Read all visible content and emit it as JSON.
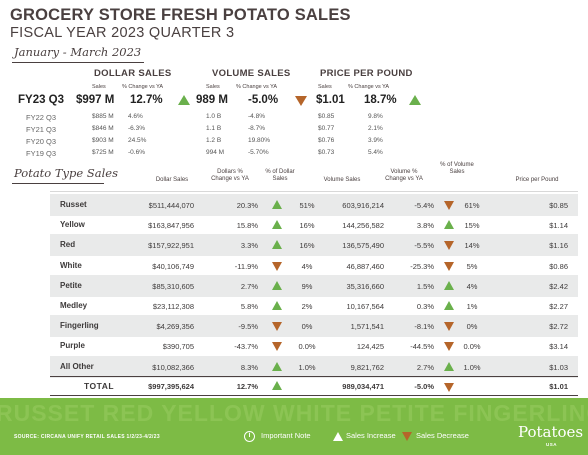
{
  "header": {
    "title": "GROCERY STORE  FRESH POTATO SALES",
    "subtitle": "FISCAL YEAR 2023 QUARTER 3",
    "date_range": "January - March 2023"
  },
  "summary": {
    "groups": {
      "dollar": "DOLLAR SALES",
      "volume": "VOLUME SALES",
      "price": "PRICE PER POUND"
    },
    "subheads": {
      "dollar_sales": "Sales",
      "dollar_change": "% Change vs YA",
      "volume_sales": "Sales",
      "volume_change": "% Change vs YA",
      "price_sales": "Sales",
      "price_change": "% Change vs YA"
    },
    "current": {
      "label": "FY23 Q3",
      "dollar_sales": "$997 M",
      "dollar_change": "12.7%",
      "dollar_trend": "increase",
      "volume_sales": "989 M",
      "volume_change": "-5.0%",
      "volume_trend": "decrease",
      "price": "$1.01",
      "price_change": "18.7%",
      "price_trend": "increase"
    },
    "history": [
      {
        "label": "FY22 Q3",
        "dollar_sales": "$885 M",
        "dollar_change": "4.6%",
        "volume_sales": "1.0 B",
        "volume_change": "-4.8%",
        "price": "$0.85",
        "price_change": "9.8%"
      },
      {
        "label": "FY21 Q3",
        "dollar_sales": "$846 M",
        "dollar_change": "-6.3%",
        "volume_sales": "1.1 B",
        "volume_change": "-8.7%",
        "price": "$0.77",
        "price_change": "2.1%"
      },
      {
        "label": "FY20 Q3",
        "dollar_sales": "$903 M",
        "dollar_change": "24.5%",
        "volume_sales": "1.2 B",
        "volume_change": "19.80%",
        "price": "$0.76",
        "price_change": "3.9%"
      },
      {
        "label": "FY19 Q3",
        "dollar_sales": "$725 M",
        "dollar_change": "-0.6%",
        "volume_sales": "994 M",
        "volume_change": "-5.70%",
        "price": "$0.73",
        "price_change": "5.4%"
      }
    ]
  },
  "types_table": {
    "section_title": "Potato Type Sales",
    "columns": {
      "dollar_sales": "Dollar Sales",
      "dollar_change": "Dollars % Change vs YA",
      "dollar_share": "% of Dollar Sales",
      "volume_sales": "Volume Sales",
      "volume_change": "Volume % Change vs YA",
      "volume_share": "% of Volume Sales",
      "price": "Price per Pound"
    },
    "rows": [
      {
        "name": "Russet",
        "dollar_sales": "$511,444,070",
        "dollar_change": "20.3%",
        "dollar_trend": "increase",
        "dollar_share": "51%",
        "volume_sales": "603,916,214",
        "volume_change": "-5.4%",
        "volume_trend": "decrease",
        "volume_share": "61%",
        "price": "$0.85"
      },
      {
        "name": "Yellow",
        "dollar_sales": "$163,847,956",
        "dollar_change": "15.8%",
        "dollar_trend": "increase",
        "dollar_share": "16%",
        "volume_sales": "144,256,582",
        "volume_change": "3.8%",
        "volume_trend": "increase",
        "volume_share": "15%",
        "price": "$1.14"
      },
      {
        "name": "Red",
        "dollar_sales": "$157,922,951",
        "dollar_change": "3.3%",
        "dollar_trend": "increase",
        "dollar_share": "16%",
        "volume_sales": "136,575,490",
        "volume_change": "-5.5%",
        "volume_trend": "decrease",
        "volume_share": "14%",
        "price": "$1.16"
      },
      {
        "name": "White",
        "dollar_sales": "$40,106,749",
        "dollar_change": "-11.9%",
        "dollar_trend": "decrease",
        "dollar_share": "4%",
        "volume_sales": "46,887,460",
        "volume_change": "-25.3%",
        "volume_trend": "decrease",
        "volume_share": "5%",
        "price": "$0.86"
      },
      {
        "name": "Petite",
        "dollar_sales": "$85,310,605",
        "dollar_change": "2.7%",
        "dollar_trend": "increase",
        "dollar_share": "9%",
        "volume_sales": "35,316,660",
        "volume_change": "1.5%",
        "volume_trend": "increase",
        "volume_share": "4%",
        "price": "$2.42"
      },
      {
        "name": "Medley",
        "dollar_sales": "$23,112,308",
        "dollar_change": "5.8%",
        "dollar_trend": "increase",
        "dollar_share": "2%",
        "volume_sales": "10,167,564",
        "volume_change": "0.3%",
        "volume_trend": "increase",
        "volume_share": "1%",
        "price": "$2.27"
      },
      {
        "name": "Fingerling",
        "dollar_sales": "$4,269,356",
        "dollar_change": "-9.5%",
        "dollar_trend": "decrease",
        "dollar_share": "0%",
        "volume_sales": "1,571,541",
        "volume_change": "-8.1%",
        "volume_trend": "decrease",
        "volume_share": "0%",
        "price": "$2.72"
      },
      {
        "name": "Purple",
        "dollar_sales": "$390,705",
        "dollar_change": "-43.7%",
        "dollar_trend": "decrease",
        "dollar_share": "0.0%",
        "volume_sales": "124,425",
        "volume_change": "-44.5%",
        "volume_trend": "decrease",
        "volume_share": "0.0%",
        "price": "$3.14"
      },
      {
        "name": "All Other",
        "dollar_sales": "$10,082,366",
        "dollar_change": "8.3%",
        "dollar_trend": "increase",
        "dollar_share": "1.0%",
        "volume_sales": "9,821,762",
        "volume_change": "2.7%",
        "volume_trend": "increase",
        "volume_share": "1.0%",
        "price": "$1.03"
      }
    ],
    "total": {
      "name": "TOTAL",
      "dollar_sales": "$997,395,624",
      "dollar_change": "12.7%",
      "dollar_trend": "increase",
      "volume_sales": "989,034,471",
      "volume_change": "-5.0%",
      "volume_trend": "decrease",
      "price": "$1.01"
    }
  },
  "footer": {
    "watermark": "RUSSET RED YELLOW WHITE PETITE FINGERLING MEDLEY",
    "source": "SOURCE: CIRCANA UNIFY RETAIL SALES 1/2/23-4/2/23",
    "legend_note": "Important Note",
    "legend_increase": "Sales Increase",
    "legend_decrease": "Sales Decrease",
    "logo": "Potatoes",
    "logo_sub": "USA"
  },
  "colors": {
    "increase": "#6ab04c",
    "decrease": "#b5652a",
    "footer_green": "#7dbb45",
    "row_shade": "#e9eaea",
    "text": "#3d3a3a"
  },
  "icons": {
    "note": "info-circle-icon",
    "increase": "triangle-up-icon",
    "decrease": "triangle-down-icon"
  }
}
